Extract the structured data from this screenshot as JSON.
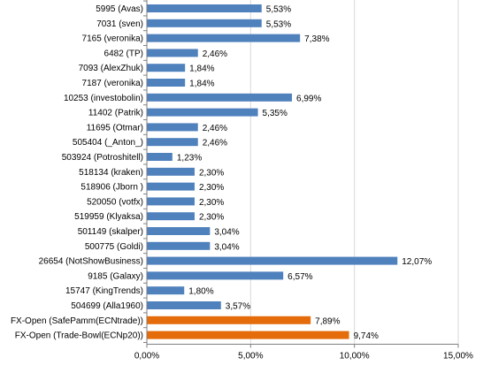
{
  "chart_data": {
    "type": "bar",
    "orientation": "horizontal",
    "categories": [
      "5995 (Avas)",
      "7031 (sven)",
      "7165 (veronika)",
      "6482 (TP)",
      "7093 (AlexZhuk)",
      "7187 (veronika)",
      "10253 (investobolin)",
      "11402 (Patrik)",
      "11695 (Otmar)",
      "505404 (_Anton_)",
      "503924 (Potroshitell)",
      "518134 (kraken)",
      "518906 (Jborn )",
      "520050 (votfx)",
      "519959 (Klyaksa)",
      "501149 (skalper)",
      "500775 (Goldi)",
      "26654 (NotShowBusiness)",
      "9185 (Galaxy)",
      "15747 (KingTrends)",
      "504699 (Alla1960)",
      "FX-Open (SafePamm(ECNtrade))",
      "FX-Open (Trade-Bowl(ECNp20))"
    ],
    "values": [
      5.53,
      5.53,
      7.38,
      2.46,
      1.84,
      1.84,
      6.99,
      5.35,
      2.46,
      2.46,
      1.23,
      2.3,
      2.3,
      2.3,
      2.3,
      3.04,
      3.04,
      12.07,
      6.57,
      1.8,
      3.57,
      7.89,
      9.74
    ],
    "value_labels": [
      "5,53%",
      "5,53%",
      "7,38%",
      "2,46%",
      "1,84%",
      "1,84%",
      "6,99%",
      "5,35%",
      "2,46%",
      "2,46%",
      "1,23%",
      "2,30%",
      "2,30%",
      "2,30%",
      "2,30%",
      "3,04%",
      "3,04%",
      "12,07%",
      "6,57%",
      "1,80%",
      "3,57%",
      "7,89%",
      "9,74%"
    ],
    "bar_colors": [
      "#4f81bd",
      "#4f81bd",
      "#4f81bd",
      "#4f81bd",
      "#4f81bd",
      "#4f81bd",
      "#4f81bd",
      "#4f81bd",
      "#4f81bd",
      "#4f81bd",
      "#4f81bd",
      "#4f81bd",
      "#4f81bd",
      "#4f81bd",
      "#4f81bd",
      "#4f81bd",
      "#4f81bd",
      "#4f81bd",
      "#4f81bd",
      "#4f81bd",
      "#4f81bd",
      "#e46c0a",
      "#e46c0a"
    ],
    "xlim": [
      0,
      15
    ],
    "x_ticks": [
      0,
      5,
      10,
      15
    ],
    "x_tick_labels": [
      "0,00%",
      "5,00%",
      "10,00%",
      "15,00%"
    ],
    "grid": true,
    "title": "",
    "xlabel": "",
    "ylabel": ""
  },
  "colors": {
    "primary_bar": "#4f81bd",
    "highlight_bar": "#e46c0a",
    "gridline": "#d9d9d9",
    "axis": "#808080"
  }
}
